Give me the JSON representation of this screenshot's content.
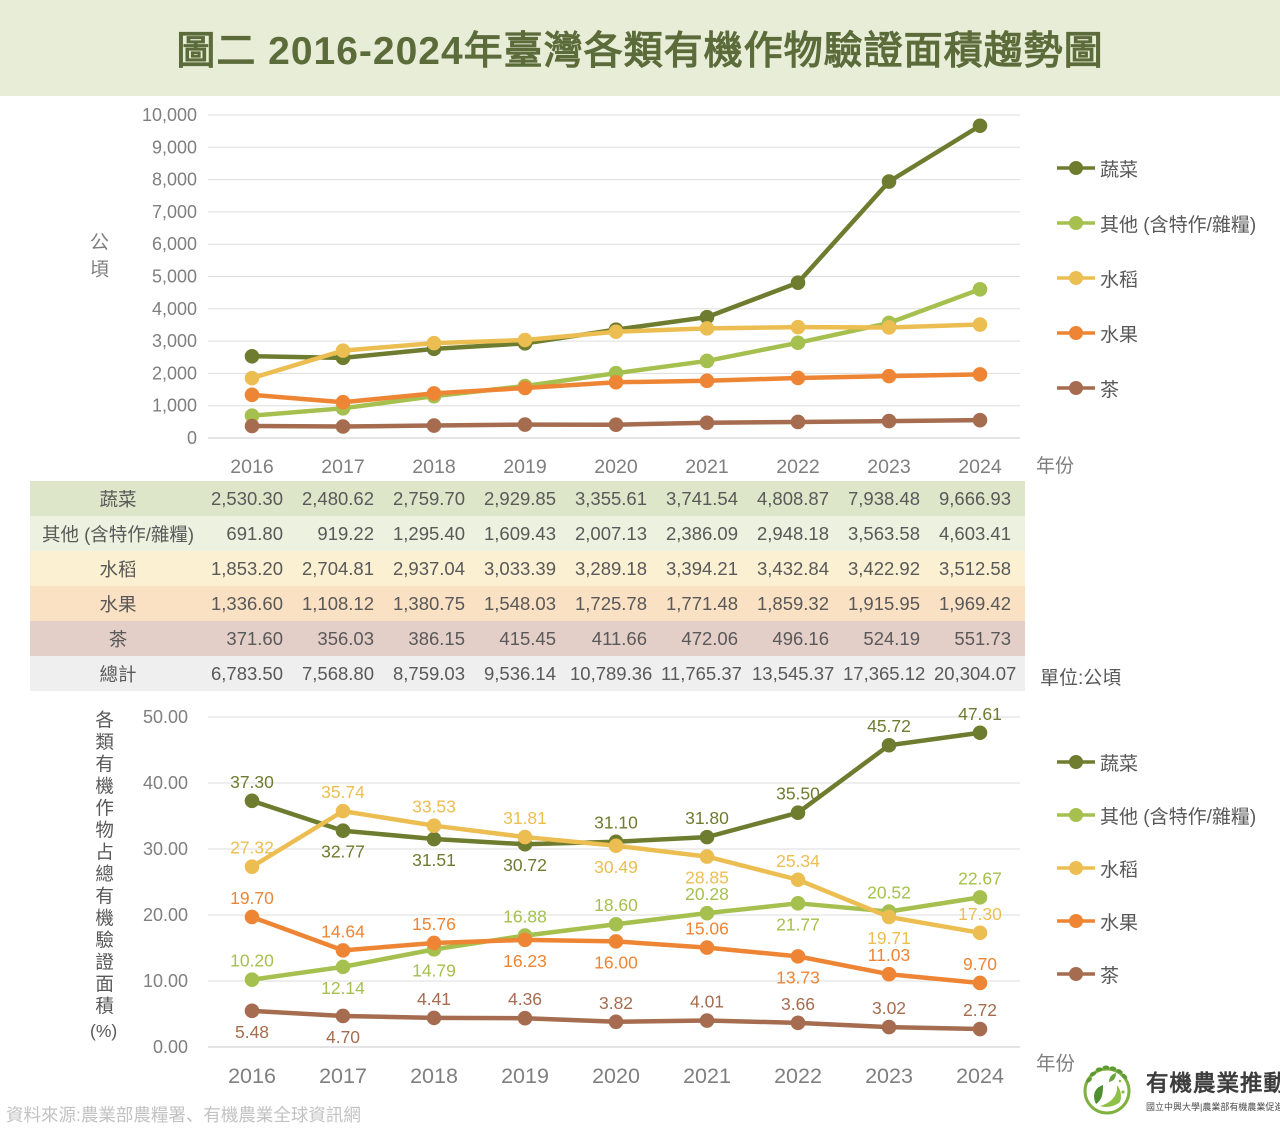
{
  "title": "圖二  2016-2024年臺灣各類有機作物驗證面積趨勢圖",
  "years": [
    "2016",
    "2017",
    "2018",
    "2019",
    "2020",
    "2021",
    "2022",
    "2023",
    "2024"
  ],
  "series_meta": [
    {
      "key": "veg",
      "label": "蔬菜",
      "color": "#6E7C2F"
    },
    {
      "key": "other",
      "label": "其他 (含特作/雜糧)",
      "color": "#A5C04E"
    },
    {
      "key": "rice",
      "label": "水稻",
      "color": "#ECBE52"
    },
    {
      "key": "fruit",
      "label": "水果",
      "color": "#EE8534"
    },
    {
      "key": "tea",
      "label": "茶",
      "color": "#A66C4F"
    }
  ],
  "chart_data": [
    {
      "type": "line",
      "x": [
        "2016",
        "2017",
        "2018",
        "2019",
        "2020",
        "2021",
        "2022",
        "2023",
        "2024"
      ],
      "xlabel": "年份",
      "ylabel": "公頃",
      "ylim": [
        0,
        10000
      ],
      "ytick_step": 1000,
      "grid": true,
      "legend_position": "right",
      "series": [
        {
          "name": "蔬菜",
          "values": [
            2530.3,
            2480.62,
            2759.7,
            2929.85,
            3355.61,
            3741.54,
            4808.87,
            7938.48,
            9666.93
          ]
        },
        {
          "name": "其他 (含特作/雜糧)",
          "values": [
            691.8,
            919.22,
            1295.4,
            1609.43,
            2007.13,
            2386.09,
            2948.18,
            3563.58,
            4603.41
          ]
        },
        {
          "name": "水稻",
          "values": [
            1853.2,
            2704.81,
            2937.04,
            3033.39,
            3289.18,
            3394.21,
            3432.84,
            3422.92,
            3512.58
          ]
        },
        {
          "name": "水果",
          "values": [
            1336.6,
            1108.12,
            1380.75,
            1548.03,
            1725.78,
            1771.48,
            1859.32,
            1915.95,
            1969.42
          ]
        },
        {
          "name": "茶",
          "values": [
            371.6,
            356.03,
            386.15,
            415.45,
            411.66,
            472.06,
            496.16,
            524.19,
            551.73
          ]
        }
      ]
    },
    {
      "type": "line",
      "x": [
        "2016",
        "2017",
        "2018",
        "2019",
        "2020",
        "2021",
        "2022",
        "2023",
        "2024"
      ],
      "xlabel": "年份",
      "ylabel": "各類有機作物占總有機驗證面積(%)",
      "ylim": [
        0,
        50
      ],
      "ytick_step": 10,
      "grid": true,
      "legend_position": "right",
      "data_labels": true,
      "series": [
        {
          "name": "蔬菜",
          "values": [
            37.3,
            32.77,
            31.51,
            30.72,
            31.1,
            31.8,
            35.5,
            45.72,
            47.61
          ]
        },
        {
          "name": "其他 (含特作/雜糧)",
          "values": [
            10.2,
            12.14,
            14.79,
            16.88,
            18.6,
            20.28,
            21.77,
            20.52,
            22.67
          ]
        },
        {
          "name": "水稻",
          "values": [
            27.32,
            35.74,
            33.53,
            31.81,
            30.49,
            28.85,
            25.34,
            19.71,
            17.3
          ]
        },
        {
          "name": "水果",
          "values": [
            19.7,
            14.64,
            15.76,
            16.23,
            16.0,
            15.06,
            13.73,
            11.03,
            9.7
          ]
        },
        {
          "name": "茶",
          "values": [
            5.48,
            4.7,
            4.41,
            4.36,
            3.82,
            4.01,
            3.66,
            3.02,
            2.72
          ]
        }
      ]
    }
  ],
  "table": {
    "unit_note": "單位:公頃",
    "rows": [
      {
        "key": "veg",
        "label": "蔬菜",
        "bg": "#DEE6CA",
        "values": [
          2530.3,
          2480.62,
          2759.7,
          2929.85,
          3355.61,
          3741.54,
          4808.87,
          7938.48,
          9666.93
        ]
      },
      {
        "key": "other",
        "label": "其他 (含特作/雜糧)",
        "bg": "#EDF1DF",
        "values": [
          691.8,
          919.22,
          1295.4,
          1609.43,
          2007.13,
          2386.09,
          2948.18,
          3563.58,
          4603.41
        ]
      },
      {
        "key": "rice",
        "label": "水稻",
        "bg": "#FBF0D2",
        "values": [
          1853.2,
          2704.81,
          2937.04,
          3033.39,
          3289.18,
          3394.21,
          3432.84,
          3422.92,
          3512.58
        ]
      },
      {
        "key": "fruit",
        "label": "水果",
        "bg": "#FAE1C4",
        "values": [
          1336.6,
          1108.12,
          1380.75,
          1548.03,
          1725.78,
          1771.48,
          1859.32,
          1915.95,
          1969.42
        ]
      },
      {
        "key": "tea",
        "label": "茶",
        "bg": "#E4CFC8",
        "values": [
          371.6,
          356.03,
          386.15,
          415.45,
          411.66,
          472.06,
          496.16,
          524.19,
          551.73
        ]
      },
      {
        "key": "total",
        "label": "總計",
        "bg": "#EFEFF0",
        "values": [
          6783.5,
          7568.8,
          8759.03,
          9536.14,
          10789.36,
          11765.37,
          13545.37,
          17365.12,
          20304.07
        ]
      }
    ]
  },
  "footer": {
    "source": "資料來源:農業部農糧署、有機農業全球資訊網"
  },
  "logo": {
    "org": "有機農業推動中心",
    "sub": "國立中興大學|農業部有機農業促進諮詢會"
  }
}
